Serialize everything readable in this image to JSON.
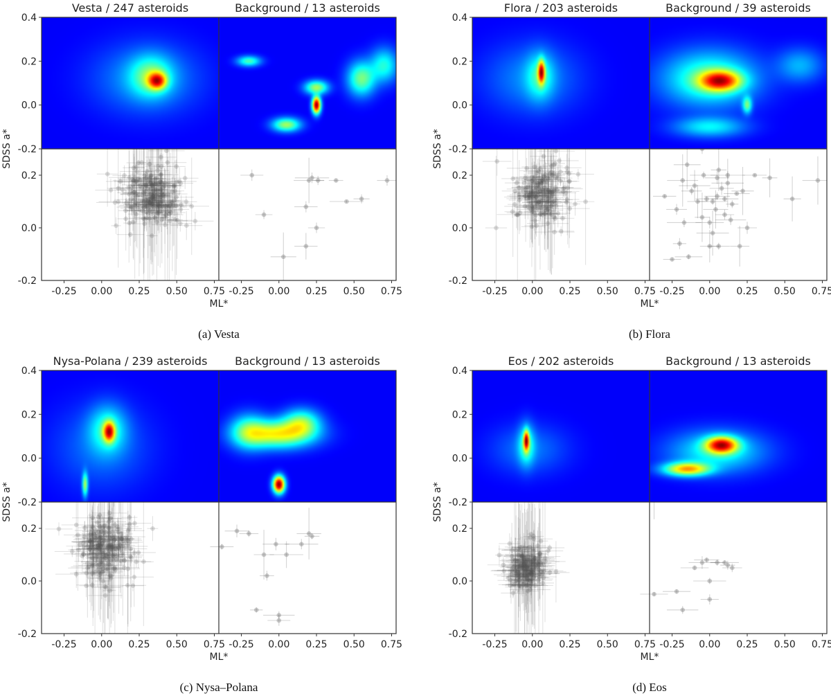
{
  "figure": {
    "axis_labels": {
      "y": "SDSS a*",
      "x": "ML*"
    },
    "x_ticks": [
      "-0.25",
      "0.00",
      "0.25",
      "0.50",
      "0.75"
    ],
    "y_ticks": [
      "0.4",
      "0.2",
      "0.0",
      "-0.2"
    ],
    "y_ticks_lower": [
      "0.2",
      "0.0",
      "-0.2"
    ]
  },
  "chart_data": [
    {
      "type": "heatmap+errorbar-scatter",
      "caption": "(a) Vesta",
      "left_title": "Vesta / 247 asteroids",
      "right_title": "Background / 13 asteroids",
      "xlim": [
        -0.4,
        0.78
      ],
      "ylim": [
        -0.2,
        0.4
      ],
      "family_peaks": [
        {
          "x": 0.37,
          "y": 0.11,
          "sx": 0.04,
          "sy": 0.025,
          "w": 1.0
        },
        {
          "x": 0.33,
          "y": 0.13,
          "sx": 0.09,
          "sy": 0.06,
          "w": 0.45
        },
        {
          "x": 0.3,
          "y": 0.12,
          "sx": 0.22,
          "sy": 0.1,
          "w": 0.2
        }
      ],
      "background_peaks": [
        {
          "x": 0.25,
          "y": 0.0,
          "sx": 0.018,
          "sy": 0.025,
          "w": 1.0
        },
        {
          "x": 0.25,
          "y": 0.08,
          "sx": 0.05,
          "sy": 0.02,
          "w": 0.4
        },
        {
          "x": 0.55,
          "y": 0.12,
          "sx": 0.06,
          "sy": 0.05,
          "w": 0.35
        },
        {
          "x": 0.05,
          "y": -0.09,
          "sx": 0.06,
          "sy": 0.02,
          "w": 0.4
        },
        {
          "x": -0.2,
          "y": 0.2,
          "sx": 0.05,
          "sy": 0.015,
          "w": 0.3
        },
        {
          "x": 0.7,
          "y": 0.18,
          "sx": 0.06,
          "sy": 0.05,
          "w": 0.25
        }
      ],
      "family_points": {
        "n": 247,
        "center": [
          0.33,
          0.12
        ],
        "spread": [
          0.13,
          0.07
        ]
      },
      "background_points": [
        [
          -0.18,
          0.2
        ],
        [
          -0.1,
          0.05
        ],
        [
          0.03,
          -0.11
        ],
        [
          0.18,
          0.08
        ],
        [
          0.2,
          0.18
        ],
        [
          0.25,
          0.0
        ],
        [
          0.38,
          0.18
        ],
        [
          0.45,
          0.1
        ],
        [
          0.55,
          0.11
        ],
        [
          0.72,
          0.18
        ],
        [
          0.18,
          -0.07
        ],
        [
          0.22,
          0.19
        ],
        [
          0.26,
          0.18
        ]
      ]
    },
    {
      "type": "heatmap+errorbar-scatter",
      "caption": "(b) Flora",
      "left_title": "Flora / 203 asteroids",
      "right_title": "Background / 39 asteroids",
      "xlim": [
        -0.4,
        0.78
      ],
      "ylim": [
        -0.2,
        0.4
      ],
      "family_peaks": [
        {
          "x": 0.06,
          "y": 0.15,
          "sx": 0.015,
          "sy": 0.035,
          "w": 1.0
        },
        {
          "x": 0.05,
          "y": 0.13,
          "sx": 0.06,
          "sy": 0.07,
          "w": 0.3
        },
        {
          "x": 0.0,
          "y": 0.12,
          "sx": 0.2,
          "sy": 0.1,
          "w": 0.15
        }
      ],
      "background_points_count": 39,
      "background_peaks": [
        {
          "x": 0.07,
          "y": 0.11,
          "sx": 0.09,
          "sy": 0.03,
          "w": 1.0
        },
        {
          "x": 0.0,
          "y": 0.12,
          "sx": 0.2,
          "sy": 0.08,
          "w": 0.45
        },
        {
          "x": 0.25,
          "y": 0.0,
          "sx": 0.02,
          "sy": 0.025,
          "w": 0.45
        },
        {
          "x": 0.0,
          "y": -0.1,
          "sx": 0.15,
          "sy": 0.03,
          "w": 0.3
        },
        {
          "x": 0.6,
          "y": 0.18,
          "sx": 0.1,
          "sy": 0.05,
          "w": 0.2
        }
      ],
      "family_points": {
        "n": 203,
        "center": [
          0.06,
          0.13
        ],
        "spread": [
          0.12,
          0.08
        ]
      },
      "background_points": [
        [
          -0.3,
          0.12
        ],
        [
          -0.22,
          0.07
        ],
        [
          -0.17,
          0.02
        ],
        [
          -0.25,
          -0.12
        ],
        [
          -0.2,
          -0.06
        ],
        [
          -0.14,
          -0.11
        ],
        [
          -0.12,
          0.14
        ],
        [
          -0.08,
          0.1
        ],
        [
          -0.1,
          0.16
        ],
        [
          -0.05,
          0.04
        ],
        [
          0.0,
          0.02
        ],
        [
          0.02,
          0.1
        ],
        [
          0.05,
          0.12
        ],
        [
          0.06,
          -0.07
        ],
        [
          0.08,
          0.15
        ],
        [
          0.1,
          0.11
        ],
        [
          0.12,
          0.17
        ],
        [
          0.15,
          0.09
        ],
        [
          0.18,
          0.13
        ],
        [
          0.2,
          -0.07
        ],
        [
          0.25,
          0.0
        ],
        [
          0.3,
          0.2
        ],
        [
          0.4,
          0.19
        ],
        [
          0.55,
          0.11
        ],
        [
          0.72,
          0.18
        ],
        [
          -0.04,
          0.2
        ],
        [
          0.04,
          0.07
        ],
        [
          -0.18,
          0.18
        ],
        [
          0.22,
          0.14
        ],
        [
          0.1,
          0.05
        ],
        [
          -0.02,
          0.11
        ],
        [
          0.14,
          0.03
        ],
        [
          0.05,
          0.19
        ],
        [
          -0.15,
          0.24
        ],
        [
          -0.05,
          0.3
        ],
        [
          0.06,
          0.22
        ],
        [
          0.12,
          0.2
        ],
        [
          0.02,
          -0.02
        ],
        [
          0.0,
          -0.07
        ]
      ]
    },
    {
      "type": "heatmap+errorbar-scatter",
      "caption": "(c) Nysa–Polana",
      "left_title": "Nysa-Polana / 239 asteroids",
      "right_title": "Background / 13 asteroids",
      "xlim": [
        -0.4,
        0.78
      ],
      "ylim": [
        -0.2,
        0.4
      ],
      "family_peaks": [
        {
          "x": 0.05,
          "y": 0.12,
          "sx": 0.025,
          "sy": 0.03,
          "w": 1.0
        },
        {
          "x": 0.04,
          "y": 0.13,
          "sx": 0.08,
          "sy": 0.07,
          "w": 0.35
        },
        {
          "x": -0.11,
          "y": -0.12,
          "sx": 0.012,
          "sy": 0.035,
          "w": 0.55
        },
        {
          "x": 0.0,
          "y": 0.05,
          "sx": 0.2,
          "sy": 0.12,
          "w": 0.12
        }
      ],
      "background_peaks": [
        {
          "x": 0.0,
          "y": -0.12,
          "sx": 0.025,
          "sy": 0.025,
          "w": 1.0
        },
        {
          "x": 0.0,
          "y": 0.11,
          "sx": 0.15,
          "sy": 0.04,
          "w": 0.5
        },
        {
          "x": 0.15,
          "y": 0.16,
          "sx": 0.08,
          "sy": 0.04,
          "w": 0.35
        },
        {
          "x": -0.2,
          "y": 0.12,
          "sx": 0.08,
          "sy": 0.05,
          "w": 0.3
        }
      ],
      "family_points": {
        "n": 239,
        "center": [
          0.03,
          0.13
        ],
        "spread": [
          0.13,
          0.09
        ]
      },
      "background_points": [
        [
          -0.38,
          0.13
        ],
        [
          -0.28,
          0.19
        ],
        [
          -0.2,
          0.18
        ],
        [
          -0.15,
          -0.11
        ],
        [
          -0.1,
          0.1
        ],
        [
          -0.08,
          0.02
        ],
        [
          -0.02,
          0.14
        ],
        [
          0.0,
          -0.13
        ],
        [
          0.0,
          -0.15
        ],
        [
          0.05,
          0.1
        ],
        [
          0.15,
          0.14
        ],
        [
          0.2,
          0.18
        ],
        [
          0.22,
          0.17
        ]
      ]
    },
    {
      "type": "heatmap+errorbar-scatter",
      "caption": "(d) Eos",
      "left_title": "Eos / 202 asteroids",
      "right_title": "Background / 13 asteroids",
      "xlim": [
        -0.4,
        0.78
      ],
      "ylim": [
        -0.2,
        0.4
      ],
      "family_peaks": [
        {
          "x": -0.04,
          "y": 0.08,
          "sx": 0.012,
          "sy": 0.03,
          "w": 1.0
        },
        {
          "x": -0.04,
          "y": 0.06,
          "sx": 0.035,
          "sy": 0.06,
          "w": 0.35
        },
        {
          "x": -0.02,
          "y": 0.04,
          "sx": 0.16,
          "sy": 0.07,
          "w": 0.12
        }
      ],
      "background_peaks": [
        {
          "x": 0.08,
          "y": 0.06,
          "sx": 0.07,
          "sy": 0.025,
          "w": 1.0
        },
        {
          "x": -0.15,
          "y": -0.05,
          "sx": 0.1,
          "sy": 0.02,
          "w": 0.75
        },
        {
          "x": 0.05,
          "y": 0.03,
          "sx": 0.2,
          "sy": 0.06,
          "w": 0.3
        }
      ],
      "family_points": {
        "n": 202,
        "center": [
          -0.03,
          0.05
        ],
        "spread": [
          0.09,
          0.06
        ]
      },
      "background_points": [
        [
          -0.37,
          0.31
        ],
        [
          -0.37,
          -0.05
        ],
        [
          -0.22,
          -0.04
        ],
        [
          -0.18,
          -0.11
        ],
        [
          -0.05,
          0.07
        ],
        [
          -0.02,
          0.08
        ],
        [
          0.0,
          0.0
        ],
        [
          0.0,
          -0.07
        ],
        [
          0.05,
          0.07
        ],
        [
          0.1,
          0.07
        ],
        [
          0.12,
          0.06
        ],
        [
          0.15,
          0.05
        ],
        [
          -0.1,
          0.05
        ]
      ]
    }
  ]
}
